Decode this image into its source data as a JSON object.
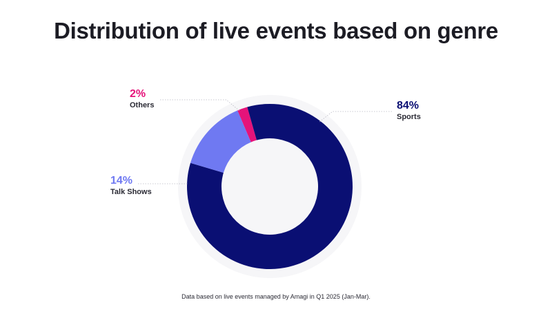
{
  "chart_data": {
    "type": "pie",
    "style": "donut",
    "title": "Distribution of live events based on genre",
    "slices": [
      {
        "label": "Sports",
        "value": 84,
        "value_label": "84%",
        "color": "#0a0f73"
      },
      {
        "label": "Talk Shows",
        "value": 14,
        "value_label": "14%",
        "color": "#6f79f2"
      },
      {
        "label": "Others",
        "value": 2,
        "value_label": "2%",
        "color": "#e5137a"
      }
    ],
    "footnote": "Data based on live events managed by Amagi in Q1 2025 (Jan-Mar)."
  }
}
